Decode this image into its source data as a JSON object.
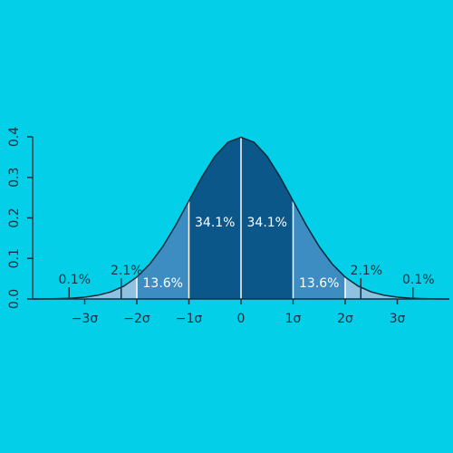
{
  "chart_data": {
    "type": "density",
    "x": [
      -4,
      -3.75,
      -3.5,
      -3.25,
      -3,
      -2.75,
      -2.5,
      -2.25,
      -2,
      -1.75,
      -1.5,
      -1.25,
      -1,
      -0.75,
      -0.5,
      -0.25,
      0,
      0.25,
      0.5,
      0.75,
      1,
      1.25,
      1.5,
      1.75,
      2,
      2.25,
      2.5,
      2.75,
      3,
      3.25,
      3.5,
      3.75,
      4
    ],
    "values": [
      0.0001,
      0.0004,
      0.0009,
      0.002,
      0.0044,
      0.0091,
      0.0175,
      0.0317,
      0.054,
      0.0863,
      0.1295,
      0.1826,
      0.242,
      0.3011,
      0.3521,
      0.3867,
      0.3989,
      0.3867,
      0.3521,
      0.3011,
      0.242,
      0.1826,
      0.1295,
      0.0863,
      0.054,
      0.0317,
      0.0175,
      0.0091,
      0.0044,
      0.002,
      0.0009,
      0.0004,
      0.0001
    ],
    "line_color": "#0b2a3a",
    "regions": {
      "edges": [
        -4,
        -3,
        -2,
        -1,
        0,
        1,
        2,
        3,
        4
      ],
      "values": [
        0.1,
        2.1,
        13.6,
        34.1,
        34.1,
        13.6,
        2.1,
        0.1
      ],
      "value_labels": [
        "0.1%",
        "2.1%",
        "13.6%",
        "34.1%",
        "34.1%",
        "13.6%",
        "2.1%",
        "0.1%"
      ],
      "colors": [
        "#b9dcef",
        "#8fc1e0",
        "#3d8dc2",
        "#0b578a",
        "#0b578a",
        "#3d8dc2",
        "#8fc1e0",
        "#b9dcef"
      ]
    },
    "xlim": [
      -4,
      4
    ],
    "xticks": [
      {
        "value": -3,
        "label": "−3σ"
      },
      {
        "value": -2,
        "label": "−2σ"
      },
      {
        "value": -1,
        "label": "−1σ"
      },
      0,
      {
        "value": 1,
        "label": "1σ"
      },
      {
        "value": 2,
        "label": "2σ"
      },
      {
        "value": 3,
        "label": "3σ"
      }
    ],
    "ylim": [
      0,
      0.4
    ],
    "yticks": [
      {
        "value": 0,
        "label": "0.0"
      },
      0.1,
      0.2,
      0.3,
      0.4
    ]
  }
}
